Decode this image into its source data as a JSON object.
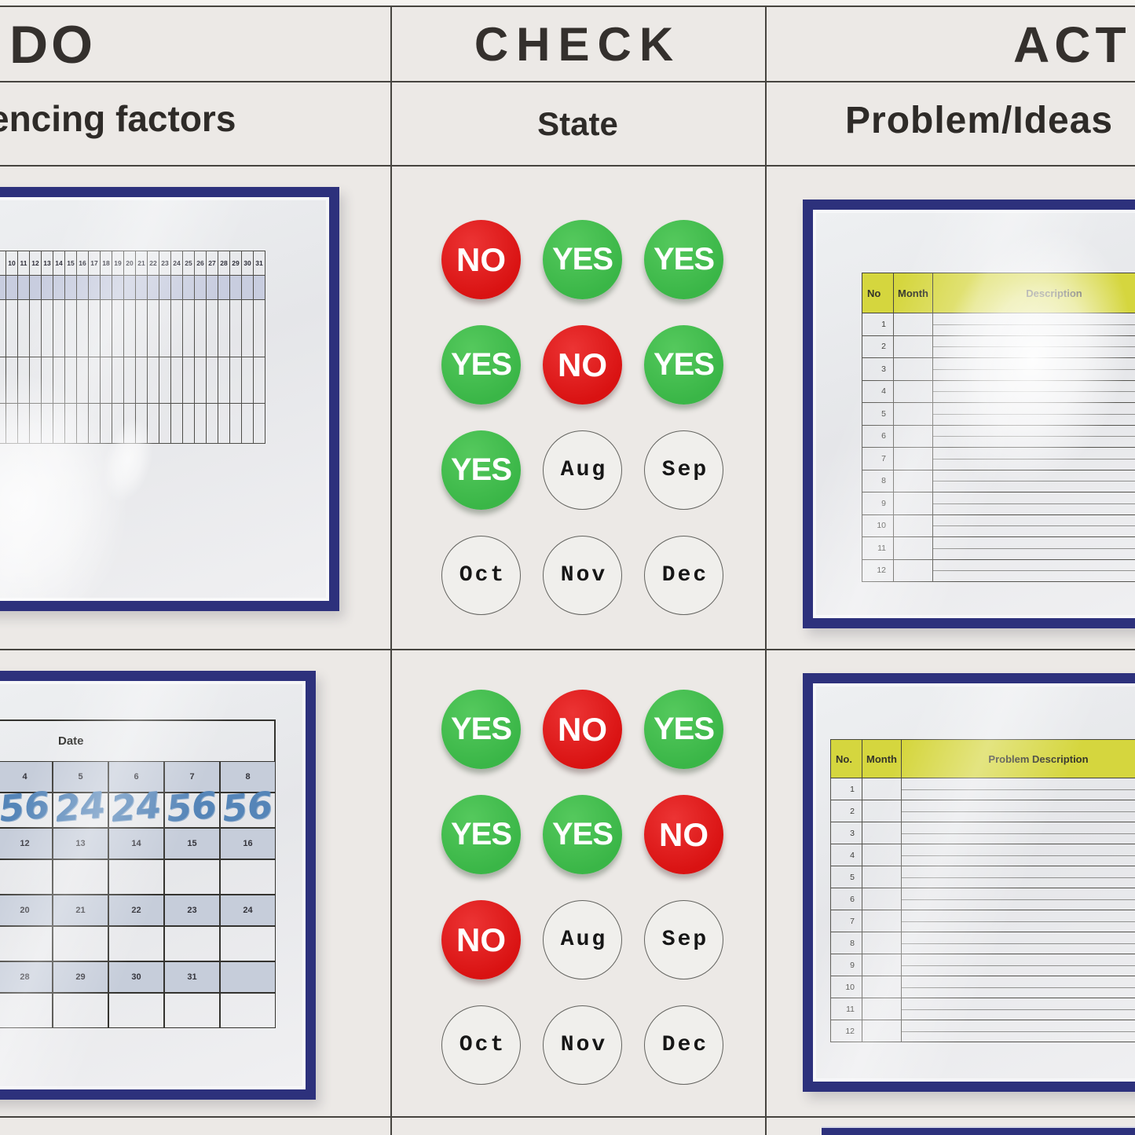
{
  "header": {
    "columns": [
      {
        "title": "DO",
        "subtitle": "encing factors"
      },
      {
        "title": "CHECK",
        "subtitle": "State"
      },
      {
        "title": "ACT",
        "subtitle": "Problem/Ideas"
      }
    ]
  },
  "do_board": {
    "top_chart": {
      "day_numbers": [
        "10",
        "11",
        "12",
        "13",
        "14",
        "15",
        "16",
        "17",
        "18",
        "19",
        "20",
        "21",
        "22",
        "23",
        "24",
        "25",
        "26",
        "27",
        "28",
        "29",
        "30",
        "31"
      ]
    },
    "bottom_calendar": {
      "corner_label": "Date",
      "weeks": [
        {
          "days": [
            "",
            "4",
            "5",
            "6",
            "7",
            "8"
          ],
          "entries": [
            "",
            "56",
            "24",
            "24",
            "56",
            "56"
          ]
        },
        {
          "days": [
            "",
            "12",
            "13",
            "14",
            "15",
            "16"
          ],
          "entries": [
            "",
            "",
            "",
            "",
            "",
            ""
          ]
        },
        {
          "days": [
            "",
            "20",
            "21",
            "22",
            "23",
            "24"
          ],
          "entries": [
            "",
            "",
            "",
            "",
            "",
            ""
          ]
        },
        {
          "days": [
            "",
            "28",
            "29",
            "30",
            "31",
            ""
          ],
          "entries": [
            "",
            "",
            "",
            "",
            "",
            ""
          ]
        }
      ]
    }
  },
  "check_board": {
    "top_group": {
      "rows": [
        [
          "NO",
          "YES",
          "YES"
        ],
        [
          "YES",
          "NO",
          "YES"
        ],
        [
          "YES",
          "Aug",
          "Sep"
        ],
        [
          "Oct",
          "Nov",
          "Dec"
        ]
      ]
    },
    "bottom_group": {
      "rows": [
        [
          "YES",
          "NO",
          "YES"
        ],
        [
          "YES",
          "YES",
          "NO"
        ],
        [
          "NO",
          "Aug",
          "Sep"
        ],
        [
          "Oct",
          "Nov",
          "Dec"
        ]
      ]
    }
  },
  "act_board": {
    "top_table": {
      "col_no": "No",
      "col_month": "Month",
      "col_desc": "Description",
      "row_numbers": [
        "1",
        "2",
        "3",
        "4",
        "5",
        "6",
        "7",
        "8",
        "9",
        "10",
        "11",
        "12"
      ]
    },
    "bottom_table": {
      "col_no": "No.",
      "col_month": "Month",
      "col_desc": "Problem Description",
      "row_numbers": [
        "1",
        "2",
        "3",
        "4",
        "5",
        "6",
        "7",
        "8",
        "9",
        "10",
        "11",
        "12"
      ]
    }
  },
  "colors": {
    "frame_navy": "#2d317c",
    "magnet_green": "#3ab647",
    "magnet_red": "#d91212",
    "table_header_yellow": "#d5d63e",
    "calendar_shade": "#c6cdda",
    "grid_shade": "#c8cddf",
    "board_line": "#46443f",
    "handwriting_blue": "#5585b8"
  }
}
